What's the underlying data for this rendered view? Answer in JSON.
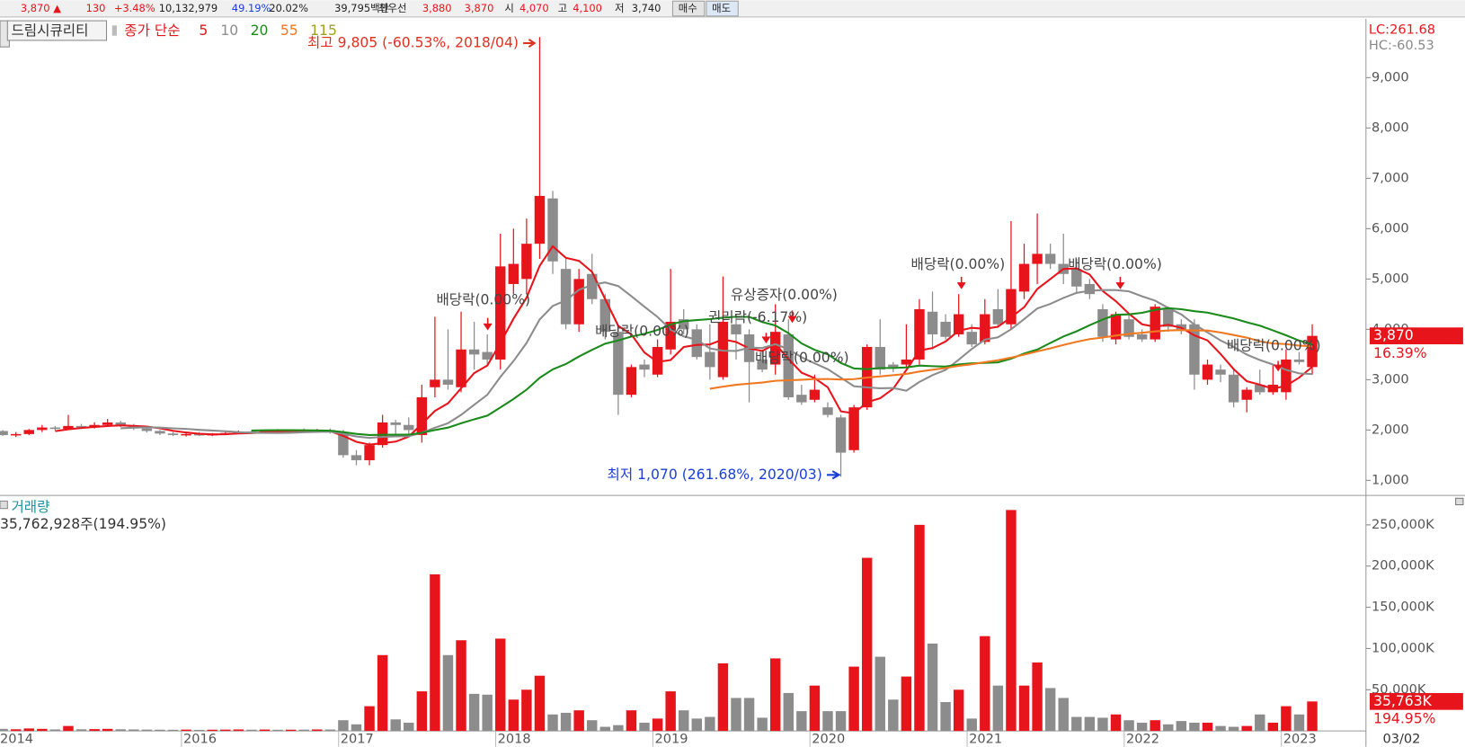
{
  "header": [
    "3,870 ▲",
    "130",
    "+3.48%",
    "10,132,979",
    "49.19%",
    "20.02%",
    "39,795백만",
    "최우선",
    "3,880",
    "3,870",
    "시",
    "4,070",
    "고",
    "4,100",
    "저",
    "3,740",
    "매수",
    "매도"
  ],
  "chart_data": {
    "type": "candlestick",
    "title": "드림시큐리티",
    "legend_label": "종가 단순",
    "moving_averages": [
      {
        "period": 5,
        "color": "#e8141c"
      },
      {
        "period": 10,
        "color": "#8c8c8c"
      },
      {
        "period": 20,
        "color": "#1a8a1a"
      },
      {
        "period": 55,
        "color": "#f07820"
      },
      {
        "period": 115,
        "color": "#a0a020"
      }
    ],
    "up_color": "#e8141c",
    "down_color": "#8c8c8c",
    "categories": [
      "2014",
      null,
      null,
      null,
      null,
      null,
      null,
      null,
      null,
      null,
      null,
      null,
      null,
      null,
      "2016",
      null,
      null,
      null,
      null,
      null,
      null,
      null,
      null,
      null,
      null,
      null,
      "2017",
      null,
      null,
      null,
      null,
      null,
      null,
      null,
      null,
      null,
      null,
      null,
      "2018",
      null,
      null,
      null,
      null,
      null,
      null,
      null,
      null,
      null,
      null,
      null,
      "2019",
      null,
      null,
      null,
      null,
      null,
      null,
      null,
      null,
      null,
      null,
      null,
      "2020",
      null,
      null,
      null,
      null,
      null,
      null,
      null,
      null,
      null,
      null,
      null,
      "2021",
      null,
      null,
      null,
      null,
      null,
      null,
      null,
      null,
      null,
      null,
      null,
      "2022",
      null,
      null,
      null,
      null,
      null,
      null,
      null,
      null,
      null,
      null,
      null,
      "2023",
      null,
      null
    ],
    "date_label": "03/02",
    "open": [
      1980,
      1900,
      1920,
      2000,
      2050,
      2020,
      2080,
      2050,
      2100,
      2150,
      2080,
      2030,
      1980,
      1930,
      1900,
      1920,
      1900,
      1920,
      1940,
      1970,
      1960,
      1990,
      1970,
      1990,
      1980,
      2000,
      1950,
      1500,
      1400,
      1700,
      2150,
      2100,
      1900,
      2850,
      3000,
      2850,
      3600,
      3550,
      3400,
      4900,
      5000,
      5700,
      6600,
      5200,
      4100,
      5100,
      4600,
      3950,
      2700,
      3300,
      3100,
      3600,
      4200,
      4000,
      3550,
      3050,
      4100,
      3900,
      3400,
      3300,
      3900,
      2700,
      2600,
      2450,
      2250,
      1600,
      2450,
      3650,
      3300,
      3300,
      3400,
      4350,
      4150,
      3900,
      3950,
      3750,
      4400,
      4100,
      4750,
      5300,
      5500,
      5300,
      5200,
      4900,
      4400,
      3800,
      4200,
      3900,
      3800,
      4400,
      4100,
      4100,
      3000,
      3200,
      3100,
      2600,
      2900,
      2750,
      2750,
      3400,
      3250
    ],
    "high": [
      2000,
      1960,
      2020,
      2100,
      2080,
      2300,
      2120,
      2150,
      2220,
      2180,
      2120,
      2060,
      2000,
      1960,
      1950,
      1960,
      1940,
      1960,
      1990,
      2000,
      2010,
      2020,
      2010,
      2030,
      2020,
      2030,
      2000,
      1600,
      1750,
      2300,
      2200,
      2250,
      2900,
      4250,
      4000,
      4350,
      4150,
      3900,
      5900,
      6000,
      6200,
      9805,
      6750,
      5400,
      5200,
      5500,
      4700,
      4000,
      3300,
      3400,
      3800,
      5200,
      4400,
      4100,
      4100,
      5050,
      4300,
      4000,
      3600,
      4500,
      4200,
      2900,
      3100,
      2550,
      2300,
      2500,
      3700,
      4200,
      3350,
      4100,
      4600,
      4750,
      4300,
      4700,
      4100,
      4600,
      4800,
      6150,
      5700,
      6300,
      5700,
      5900,
      5400,
      5000,
      4500,
      4350,
      4300,
      4000,
      4500,
      4450,
      4200,
      4200,
      3400,
      3300,
      3200,
      2850,
      3200,
      3300,
      3600,
      3550,
      4100
    ],
    "low": [
      1880,
      1860,
      1900,
      1960,
      1980,
      2000,
      2020,
      2030,
      2080,
      2060,
      2000,
      1950,
      1900,
      1880,
      1870,
      1880,
      1880,
      1900,
      1920,
      1940,
      1940,
      1950,
      1950,
      1960,
      1950,
      1930,
      1450,
      1300,
      1300,
      1650,
      1900,
      1900,
      1750,
      2650,
      2800,
      2750,
      3200,
      3300,
      3200,
      4700,
      4700,
      5400,
      5100,
      4000,
      3950,
      4500,
      3800,
      2300,
      2650,
      3050,
      3050,
      3500,
      3900,
      3400,
      3000,
      3000,
      3400,
      2550,
      3150,
      3100,
      2600,
      2500,
      2550,
      2250,
      1070,
      1550,
      2400,
      3100,
      3150,
      3250,
      3300,
      3600,
      3800,
      3850,
      3650,
      3700,
      4050,
      4000,
      4600,
      4900,
      5200,
      4900,
      4700,
      4600,
      3750,
      3700,
      3800,
      3750,
      3750,
      3950,
      3900,
      2800,
      2900,
      2950,
      2450,
      2350,
      2700,
      2700,
      2600,
      3300,
      3100
    ],
    "close": [
      1900,
      1920,
      2000,
      2050,
      2020,
      2080,
      2050,
      2100,
      2150,
      2080,
      2030,
      1980,
      1930,
      1900,
      1920,
      1900,
      1920,
      1940,
      1970,
      1960,
      1990,
      1970,
      1990,
      1980,
      2000,
      1950,
      1500,
      1400,
      1700,
      2150,
      2100,
      2000,
      2650,
      3000,
      2900,
      3600,
      3500,
      3400,
      5250,
      5300,
      5700,
      6650,
      5350,
      4100,
      5000,
      4600,
      3950,
      2700,
      3250,
      3200,
      3650,
      4150,
      4000,
      3450,
      3250,
      4150,
      3900,
      3350,
      3200,
      3950,
      2650,
      2550,
      2800,
      2300,
      1550,
      2450,
      3650,
      3200,
      3250,
      3400,
      4400,
      3900,
      3850,
      4300,
      3700,
      4300,
      4100,
      4800,
      5300,
      5500,
      5300,
      5100,
      4850,
      4700,
      3850,
      4300,
      3850,
      3800,
      4450,
      4050,
      4000,
      3100,
      3300,
      3100,
      2550,
      2800,
      2750,
      2900,
      3400,
      3350,
      3870
    ],
    "volume": [
      2500,
      2000,
      3000,
      2500,
      1800,
      6000,
      2000,
      2200,
      2500,
      2000,
      1800,
      1600,
      1500,
      1400,
      1600,
      1300,
      1500,
      1600,
      1800,
      1500,
      1700,
      1400,
      1500,
      1600,
      1800,
      1700,
      13000,
      8000,
      30000,
      92000,
      14000,
      10000,
      48000,
      190000,
      92000,
      110000,
      45000,
      44000,
      112000,
      38000,
      50000,
      67000,
      20000,
      22000,
      25000,
      13000,
      5000,
      7000,
      25000,
      10000,
      15000,
      48000,
      25000,
      15000,
      17000,
      82000,
      40000,
      40000,
      16000,
      88000,
      46000,
      24000,
      55000,
      24000,
      24000,
      78000,
      210000,
      90000,
      38000,
      66000,
      250000,
      106000,
      35000,
      50000,
      15000,
      115000,
      55000,
      268000,
      55000,
      83000,
      52000,
      40000,
      17000,
      17000,
      16000,
      20000,
      13000,
      10000,
      13000,
      8000,
      12000,
      10000,
      10000,
      6000,
      5000,
      6000,
      20000,
      10000,
      30000,
      20000,
      35763
    ],
    "ylim": [
      700,
      10130
    ],
    "yticks": [
      {
        "value": 1000,
        "label": "1,000"
      },
      {
        "value": 2000,
        "label": "2,000"
      },
      {
        "value": 3000,
        "label": "3,000"
      },
      {
        "value": 4000,
        "label": "4,000"
      },
      {
        "value": 5000,
        "label": "5,000"
      },
      {
        "value": 6000,
        "label": "6,000"
      },
      {
        "value": 7000,
        "label": "7,000"
      },
      {
        "value": 8000,
        "label": "8,000"
      },
      {
        "value": 9000,
        "label": "9,000"
      }
    ],
    "volume_label": "거래량",
    "volume_info": "35,762,928주(194.95%)",
    "volume_ylim": [
      0,
      276600
    ],
    "volume_yticks": [
      {
        "value": 50000,
        "label": "50,000K"
      },
      {
        "value": 100000,
        "label": "100,000K"
      },
      {
        "value": 150000,
        "label": "150,000K"
      },
      {
        "value": 200000,
        "label": "200,000K"
      },
      {
        "value": 250000,
        "label": "250,000K"
      }
    ],
    "lc_label": "LC:261.68",
    "hc_label": "HC:-60.53",
    "last_price_label": "3,870",
    "last_price_change": "16.39%",
    "last_volume_label": "35,763K",
    "last_volume_change": "194.95%",
    "annotations": [
      "최고 9,805 (-60.53%, 2018/04)",
      "최저 1,070 (261.68%, 2020/03)",
      "배당락(0.00%)",
      "유상증자(0.00%)",
      "권리락(-6.17%)",
      "배당락(0.00%)",
      "배당락(0.00%)",
      "배당락(0.00%)",
      "배당락(0.00%)",
      "배당락(0.00%)"
    ]
  }
}
